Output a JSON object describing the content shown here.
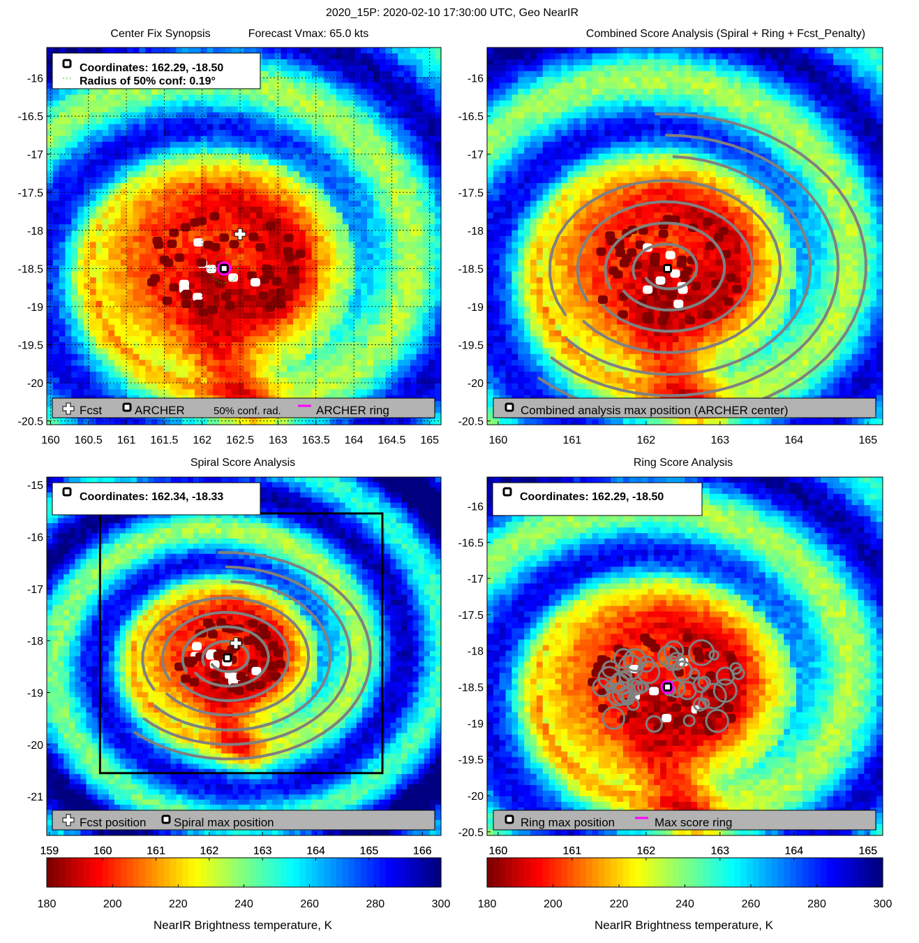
{
  "figure": {
    "suptitle": "2020_15P: 2020-02-10 17:30:00 UTC, Geo NearIR"
  },
  "colors": {
    "fcst_marker": "#ffffff",
    "archer_marker": "#000000",
    "ring": "#ff00ff",
    "contour": "#808080",
    "conf_radius": "#00cc00",
    "legend_bg": "#b3b3b3",
    "colormap": [
      "#800000",
      "#ff0000",
      "#ff8000",
      "#ffff00",
      "#80ff80",
      "#00ffff",
      "#0080ff",
      "#0000ff",
      "#000080"
    ]
  },
  "chart_data": [
    {
      "id": "center_fix",
      "type": "heatmap",
      "title_left": "Center Fix Synopsis",
      "title_right": "Forecast Vmax: 65.0 kts",
      "xlim": [
        159.95,
        165.15
      ],
      "ylim": [
        -20.55,
        -15.6
      ],
      "xticks": [
        160,
        160.5,
        161,
        161.5,
        162,
        162.5,
        163,
        163.5,
        164,
        164.5,
        165
      ],
      "xtick_labels": [
        "160",
        "160.5",
        "161",
        "161.5",
        "162",
        "162.5",
        "163",
        "163.5",
        "164",
        "164.5",
        "165"
      ],
      "yticks": [
        -16,
        -16.5,
        -17,
        -17.5,
        -18,
        -18.5,
        -19,
        -19.5,
        -20,
        -20.5
      ],
      "ytick_labels": [
        "-16",
        "-16.5",
        "-17",
        "-17.5",
        "-18",
        "-18.5",
        "-19",
        "-19.5",
        "-20",
        "-20.5"
      ],
      "grid": true,
      "storm_center": [
        162.29,
        -18.5
      ],
      "fcst": [
        162.5,
        -18.05
      ],
      "archer": [
        162.29,
        -18.5
      ],
      "ring_radius_deg": 0.08,
      "conf_radius_deg": 0.19,
      "info_lines": [
        "Coordinates: 162.29, -18.50",
        "Radius of 50% conf: 0.19°"
      ],
      "legend": [
        "Fcst",
        "ARCHER",
        "50% conf. rad.",
        "ARCHER ring"
      ]
    },
    {
      "id": "combined",
      "type": "heatmap",
      "title": "Combined Score Analysis (Spiral + Ring + Fcst_Penalty)",
      "xlim": [
        159.85,
        165.2
      ],
      "ylim": [
        -20.55,
        -15.6
      ],
      "xticks": [
        160,
        161,
        162,
        163,
        164,
        165
      ],
      "xtick_labels": [
        "160",
        "161",
        "162",
        "163",
        "164",
        "165"
      ],
      "yticks": [
        -16,
        -16.5,
        -17,
        -17.5,
        -18,
        -18.5,
        -19,
        -19.5,
        -20,
        -20.5
      ],
      "ytick_labels": [
        "-16",
        "-16.5",
        "-17",
        "-17.5",
        "-18",
        "-18.5",
        "-19",
        "-19.5",
        "-20",
        "-20.5"
      ],
      "grid": false,
      "storm_center": [
        162.29,
        -18.5
      ],
      "archer": [
        162.29,
        -18.5
      ],
      "contours": "spiral",
      "legend": [
        "Combined analysis max position (ARCHER center)"
      ]
    },
    {
      "id": "spiral",
      "type": "heatmap",
      "title": "Spiral Score Analysis",
      "xlim": [
        158.95,
        166.35
      ],
      "ylim": [
        -21.75,
        -14.85
      ],
      "xticks": [
        159,
        160,
        161,
        162,
        163,
        164,
        165,
        166
      ],
      "xtick_labels": [
        "159",
        "160",
        "161",
        "162",
        "163",
        "164",
        "165",
        "166"
      ],
      "yticks": [
        -15,
        -16,
        -17,
        -18,
        -19,
        -20,
        -21
      ],
      "ytick_labels": [
        "-15",
        "-16",
        "-17",
        "-18",
        "-19",
        "-20",
        "-21"
      ],
      "grid": false,
      "storm_center": [
        162.34,
        -18.33
      ],
      "fcst": [
        162.5,
        -18.05
      ],
      "archer": [
        162.34,
        -18.33
      ],
      "search_box": [
        159.95,
        165.25,
        -20.55,
        -15.55
      ],
      "contours": "spiral",
      "info_lines": [
        "Coordinates: 162.34, -18.33"
      ],
      "legend": [
        "Fcst position",
        "Spiral max position"
      ]
    },
    {
      "id": "ring",
      "type": "heatmap",
      "title": "Ring Score Analysis",
      "xlim": [
        159.85,
        165.2
      ],
      "ylim": [
        -20.55,
        -15.6
      ],
      "xticks": [
        160,
        161,
        162,
        163,
        164,
        165
      ],
      "xtick_labels": [
        "160",
        "161",
        "162",
        "163",
        "164",
        "165"
      ],
      "yticks": [
        -16,
        -16.5,
        -17,
        -17.5,
        -18,
        -18.5,
        -19,
        -19.5,
        -20,
        -20.5
      ],
      "ytick_labels": [
        "-16",
        "-16.5",
        "-17",
        "-17.5",
        "-18",
        "-18.5",
        "-19",
        "-19.5",
        "-20",
        "-20.5"
      ],
      "grid": false,
      "storm_center": [
        162.29,
        -18.5
      ],
      "archer": [
        162.29,
        -18.5
      ],
      "ring_radius_deg": 0.08,
      "contours": "ring",
      "info_lines": [
        "Coordinates: 162.29, -18.50"
      ],
      "legend": [
        "Ring max position",
        "Max score ring"
      ]
    }
  ],
  "colorbars": [
    {
      "id": "colorbar-left",
      "range": [
        180,
        300
      ],
      "xticks": [
        159,
        160,
        161,
        162,
        163,
        164,
        165,
        166
      ],
      "xtick_range": [
        158.95,
        166.35
      ],
      "ticks": [
        180,
        200,
        220,
        240,
        260,
        280,
        300
      ],
      "tick_labels": [
        "180",
        "200",
        "220",
        "240",
        "260",
        "280",
        "300"
      ],
      "label": "NearIR Brightness temperature, K"
    },
    {
      "id": "colorbar-right",
      "range": [
        180,
        300
      ],
      "xticks": [
        160,
        161,
        162,
        163,
        164,
        165
      ],
      "xtick_range": [
        159.85,
        165.2
      ],
      "ticks": [
        180,
        200,
        220,
        240,
        260,
        280,
        300
      ],
      "tick_labels": [
        "180",
        "200",
        "220",
        "240",
        "260",
        "280",
        "300"
      ],
      "label": "NearIR Brightness temperature, K"
    }
  ]
}
